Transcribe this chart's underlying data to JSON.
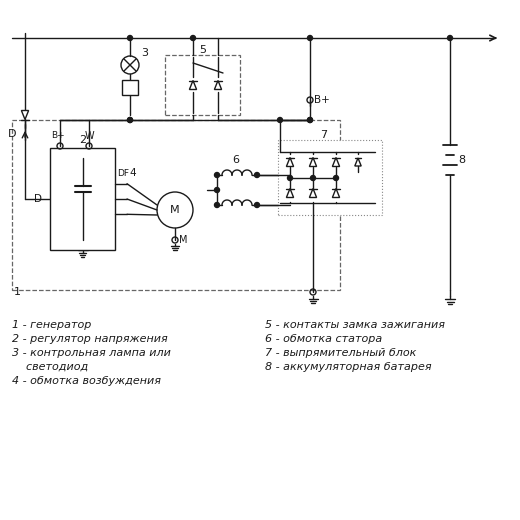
{
  "bg_color": "#ffffff",
  "line_color": "#1a1a1a",
  "fig_width": 5.2,
  "fig_height": 5.2,
  "dpi": 100,
  "legend_left": [
    "1 - генератор",
    "2 - регулятор напряжения",
    "3 - контрольная лампа или",
    "    светодиод",
    "4 - обмотка возбуждения"
  ],
  "legend_right": [
    "5 - контакты замка зажигания",
    "6 - обмотка статора",
    "7 - выпрямительный блок",
    "8 - аккумуляторная батарея"
  ]
}
